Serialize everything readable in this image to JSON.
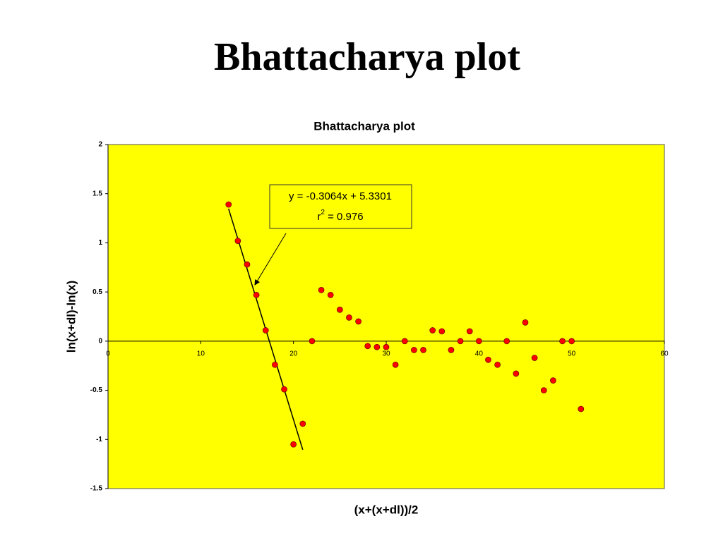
{
  "slide_title": "Bhattacharya plot",
  "chart_data": {
    "type": "scatter",
    "title": "Bhattacharya plot",
    "x_label": "(x+(x+dl))/2",
    "y_label": "ln(x+dl)-ln(x)",
    "x": [
      13,
      14,
      15,
      16,
      17,
      18,
      19,
      20,
      21,
      22,
      23,
      24,
      25,
      26,
      27,
      28,
      29,
      30,
      31,
      32,
      33,
      34,
      35,
      36,
      37,
      38,
      39,
      40,
      41,
      42,
      43,
      44,
      45,
      46,
      47,
      48,
      49,
      50,
      51
    ],
    "series": [
      {
        "color": "#ff0000",
        "values": [
          1.39,
          1.02,
          0.78,
          0.47,
          0.11,
          -0.24,
          -0.49,
          -1.05,
          -0.84,
          0,
          0.52,
          0.47,
          0.32,
          0.24,
          0.2,
          -0.05,
          -0.06,
          -0.06,
          -0.24,
          0,
          -0.09,
          -0.09,
          0.11,
          0.1,
          -0.09,
          0,
          0.1,
          0,
          -0.19,
          -0.24,
          0,
          -0.33,
          0.19,
          -0.17,
          -0.5,
          -0.4,
          0,
          0,
          -0.69
        ]
      }
    ],
    "xlim": [
      0,
      60
    ],
    "xticks": [
      0,
      10,
      20,
      30,
      40,
      50,
      60
    ],
    "ylim": [
      -1.5,
      2
    ],
    "yticks": [
      2,
      1.5,
      1,
      0.5,
      0,
      -0.5,
      -1,
      -1.5
    ],
    "background": "#ffff00",
    "trendline": {
      "slope": -0.3064,
      "intercept": 5.3301,
      "x_range": [
        13,
        21
      ],
      "equation": "y = -0.3064x + 5.3301",
      "r_squared_label": {
        "base": "r",
        "sup": "2",
        "rest": " = 0.976"
      }
    }
  }
}
